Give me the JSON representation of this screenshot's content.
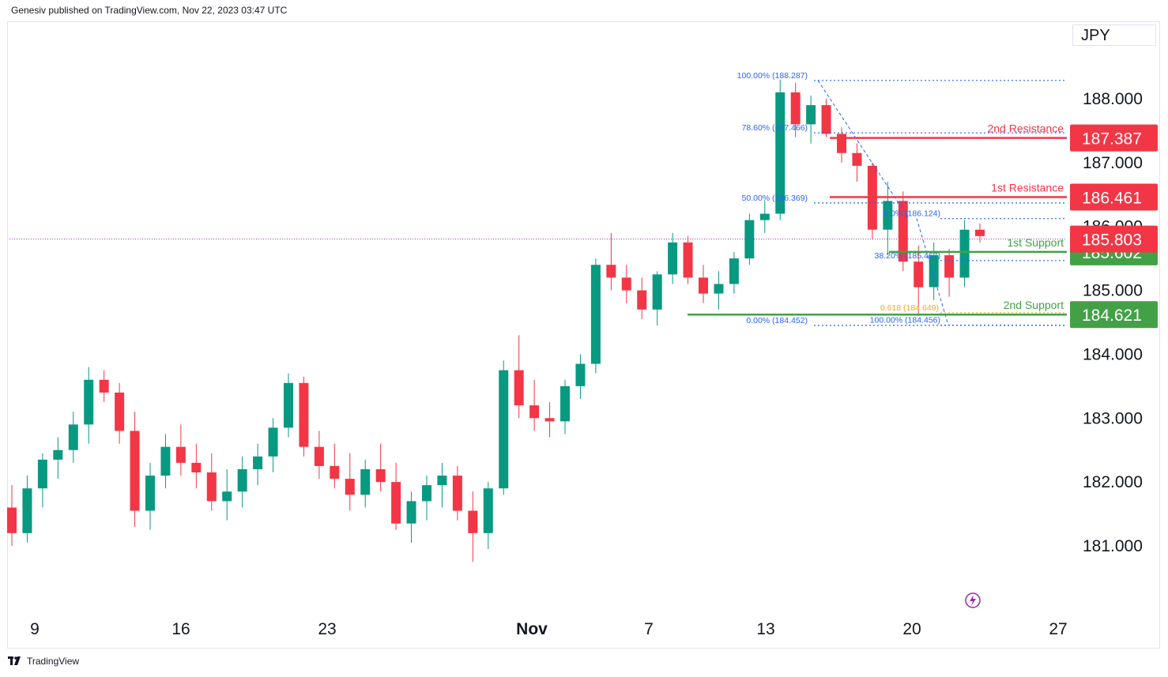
{
  "header": {
    "publisher_line": "Genesiv published on TradingView.com, Nov 22, 2023 03:47 UTC"
  },
  "currency": "JPY",
  "footer": {
    "brand": "TradingView"
  },
  "colors": {
    "up": "#089981",
    "down": "#f23645",
    "resistance": "#f23645",
    "support": "#43a047",
    "fib": "#2962ff",
    "fib_golden": "#f5a623",
    "current_price_line": "#9c27b0",
    "grid_text": "#131722"
  },
  "chart_data": {
    "type": "candlestick",
    "y_axis": {
      "min": 180.55,
      "max": 188.85,
      "ticks": [
        181.0,
        182.0,
        183.0,
        184.0,
        185.0,
        186.0,
        187.0,
        188.0
      ]
    },
    "x_axis": {
      "labels": [
        {
          "text": "9",
          "index": 0
        },
        {
          "text": "16",
          "index": 5
        },
        {
          "text": "23",
          "index": 10
        },
        {
          "text": "Nov",
          "index": 17
        },
        {
          "text": "7",
          "index": 21
        },
        {
          "text": "13",
          "index": 25
        },
        {
          "text": "20",
          "index": 30
        },
        {
          "text": "27",
          "index": 35
        }
      ]
    },
    "series_note": "approximate daily candles read from the chart, values in JPY",
    "candles": [
      [
        181.6,
        181.95,
        181.0,
        181.2
      ],
      [
        181.2,
        182.1,
        181.05,
        181.9
      ],
      [
        181.9,
        182.45,
        181.6,
        182.35
      ],
      [
        182.35,
        182.7,
        182.05,
        182.5
      ],
      [
        182.5,
        183.1,
        182.3,
        182.9
      ],
      [
        182.9,
        183.8,
        182.6,
        183.6
      ],
      [
        183.6,
        183.75,
        183.25,
        183.4
      ],
      [
        183.4,
        183.55,
        182.6,
        182.8
      ],
      [
        182.8,
        183.1,
        181.3,
        181.55
      ],
      [
        181.55,
        182.3,
        181.25,
        182.1
      ],
      [
        182.1,
        182.75,
        181.9,
        182.55
      ],
      [
        182.55,
        182.9,
        182.1,
        182.3
      ],
      [
        182.3,
        182.6,
        181.9,
        182.15
      ],
      [
        182.15,
        182.45,
        181.55,
        181.7
      ],
      [
        181.7,
        182.2,
        181.4,
        181.85
      ],
      [
        181.85,
        182.4,
        181.6,
        182.2
      ],
      [
        182.2,
        182.6,
        181.95,
        182.4
      ],
      [
        182.4,
        183.0,
        182.15,
        182.85
      ],
      [
        182.85,
        183.7,
        182.7,
        183.55
      ],
      [
        183.55,
        183.65,
        182.4,
        182.55
      ],
      [
        182.55,
        182.8,
        182.05,
        182.25
      ],
      [
        182.25,
        182.6,
        181.9,
        182.05
      ],
      [
        182.05,
        182.45,
        181.55,
        181.8
      ],
      [
        181.8,
        182.35,
        181.6,
        182.2
      ],
      [
        182.2,
        182.6,
        181.85,
        182.0
      ],
      [
        182.0,
        182.3,
        181.25,
        181.35
      ],
      [
        181.35,
        181.85,
        181.05,
        181.7
      ],
      [
        181.7,
        182.1,
        181.4,
        181.95
      ],
      [
        181.95,
        182.3,
        181.6,
        182.1
      ],
      [
        182.1,
        182.25,
        181.4,
        181.55
      ],
      [
        181.55,
        181.85,
        180.75,
        181.2
      ],
      [
        181.2,
        182.0,
        180.95,
        181.9
      ],
      [
        181.9,
        183.9,
        181.8,
        183.75
      ],
      [
        183.75,
        184.3,
        183.0,
        183.2
      ],
      [
        183.2,
        183.6,
        182.8,
        183.0
      ],
      [
        183.0,
        183.25,
        182.7,
        182.95
      ],
      [
        182.95,
        183.6,
        182.75,
        183.5
      ],
      [
        183.5,
        184.0,
        183.3,
        183.85
      ],
      [
        183.85,
        185.5,
        183.7,
        185.4
      ],
      [
        185.4,
        185.9,
        185.0,
        185.2
      ],
      [
        185.2,
        185.4,
        184.8,
        185.0
      ],
      [
        185.0,
        185.2,
        184.55,
        184.7
      ],
      [
        184.7,
        185.3,
        184.45,
        185.25
      ],
      [
        185.25,
        185.9,
        185.1,
        185.75
      ],
      [
        185.75,
        185.85,
        185.1,
        185.2
      ],
      [
        185.2,
        185.4,
        184.8,
        184.95
      ],
      [
        184.95,
        185.3,
        184.7,
        185.1
      ],
      [
        185.1,
        185.6,
        184.95,
        185.5
      ],
      [
        185.5,
        186.2,
        185.4,
        186.1
      ],
      [
        186.1,
        186.4,
        185.9,
        186.2
      ],
      [
        186.2,
        188.3,
        186.1,
        188.1
      ],
      [
        188.1,
        188.25,
        187.4,
        187.6
      ],
      [
        187.6,
        188.05,
        187.3,
        187.9
      ],
      [
        187.9,
        188.0,
        187.4,
        187.45
      ],
      [
        187.45,
        187.55,
        187.0,
        187.15
      ],
      [
        187.15,
        187.3,
        186.7,
        186.95
      ],
      [
        186.95,
        187.0,
        185.8,
        185.95
      ],
      [
        185.95,
        186.7,
        185.55,
        186.4
      ],
      [
        186.4,
        186.55,
        185.3,
        185.45
      ],
      [
        185.45,
        185.7,
        184.6,
        185.05
      ],
      [
        185.05,
        185.75,
        184.85,
        185.55
      ],
      [
        185.55,
        185.65,
        184.9,
        185.2
      ],
      [
        185.2,
        186.1,
        185.05,
        185.95
      ],
      [
        185.95,
        186.05,
        185.75,
        185.85
      ]
    ],
    "candle_index_note": "candles plotted 5 per labelled week interval on x",
    "levels": [
      {
        "name": "2nd Resistance",
        "value": "187.387",
        "y": 187.387,
        "kind": "resistance"
      },
      {
        "name": "1st Resistance",
        "value": "186.461",
        "y": 186.461,
        "kind": "resistance"
      },
      {
        "name": "1st Support",
        "value": "185.602",
        "y": 185.602,
        "kind": "support"
      },
      {
        "name": "2nd Support",
        "value": "184.621",
        "y": 184.621,
        "kind": "support"
      }
    ],
    "current_price": {
      "value": "185.803",
      "y": 185.803
    },
    "fib_labels": [
      {
        "text": "100.00% (188.287)",
        "y": 188.287,
        "side": "left-top"
      },
      {
        "text": "78.60% (187.466)",
        "y": 187.466,
        "side": "left-top"
      },
      {
        "text": "50.00% (186.369)",
        "y": 186.369,
        "side": "left-top"
      },
      {
        "text": "0.00% (184.452)",
        "y": 184.452,
        "side": "left-top"
      },
      {
        "text": "0.0% (186.124)",
        "y": 186.124,
        "side": "right"
      },
      {
        "text": "38.20% (185.467)",
        "y": 185.467,
        "side": "right"
      },
      {
        "text": "0.618 (184.649)",
        "y": 184.649,
        "side": "right-golden"
      },
      {
        "text": "100.00% (184.456)",
        "y": 184.456,
        "side": "right"
      }
    ]
  }
}
